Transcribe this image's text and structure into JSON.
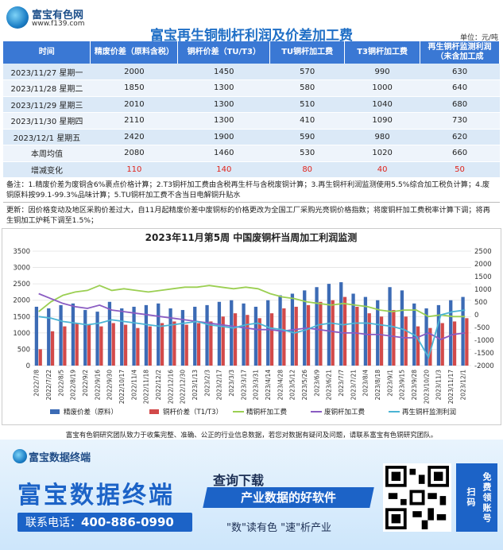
{
  "header": {
    "logo_name": "富宝有色网",
    "logo_url": "www.f139.com",
    "title": "富宝再生铜制杆利润及价差加工费",
    "unit": "单位：元/吨"
  },
  "table": {
    "columns": [
      "时间",
      "精废价差（原料含税）",
      "铜杆价差（TU/T3）",
      "TU铜杆加工费",
      "T3铜杆加工费",
      "再生铜杆监测利润（未含加工成"
    ],
    "rows": [
      [
        "2023/11/27 星期一",
        "2000",
        "1450",
        "570",
        "990",
        "630"
      ],
      [
        "2023/11/28 星期二",
        "1850",
        "1300",
        "580",
        "1000",
        "640"
      ],
      [
        "2023/11/29 星期三",
        "2010",
        "1300",
        "510",
        "1040",
        "680"
      ],
      [
        "2023/11/30 星期四",
        "2110",
        "1300",
        "410",
        "1090",
        "730"
      ],
      [
        "2023/12/1  星期五",
        "2420",
        "1900",
        "590",
        "980",
        "620"
      ],
      [
        "本周均值",
        "2080",
        "1460",
        "530",
        "1020",
        "660"
      ]
    ],
    "change_label": "增减变化",
    "change_values": [
      "110",
      "140",
      "80",
      "40",
      "50"
    ]
  },
  "notes": {
    "note1": "备注：1.精废价差为废铜含6%裹点价格计算；2.T3铜杆加工费由含税再生杆与含税废铜计算；3.再生铜杆利润监测使用5.5%综合加工税负计算；4.废铜原料按99.1-99.3%品味计算；5.TU铜杆加工费不含当日电解铜升贴水",
    "note2": "更新：因价格变动及地区采购价差过大，自11月起精废价差中废铜标的价格更改为全国工厂采购光亮铜价格指数；将废铜杆加工费税率计算下调；将再生铜加工炉耗下调至1.5%；"
  },
  "chart_data": {
    "type": "bar",
    "title": "2023年11月第5周  中国废铜杆当周加工利润监测",
    "y_left": [
      0,
      3500
    ],
    "y_right": [
      -2000,
      2500
    ],
    "y_left_ticks": [
      "0",
      "500",
      "1000",
      "1500",
      "2000",
      "2500",
      "3000",
      "3500"
    ],
    "y_right_ticks": [
      "-2000",
      "-1500",
      "-1000",
      "-500",
      "0",
      "500",
      "1000",
      "1500",
      "2000",
      "2500"
    ],
    "x_ticks": [
      "2022/7/8",
      "2022/7/22",
      "2022/8/5",
      "2022/8/19",
      "2022/9/2",
      "2022/9/16",
      "2022/9/30",
      "2022/10/17",
      "2022/11/4",
      "2022/11/18",
      "2022/12/2",
      "2022/12/16",
      "2022/12/30",
      "2023/1/13",
      "2023/2/3",
      "2023/2/17",
      "2023/3/3",
      "2023/3/17",
      "2023/3/31",
      "2023/4/14",
      "2023/4/28",
      "2023/5/12",
      "2023/5/26",
      "2023/6/9",
      "2023/6/21",
      "2023/7/7",
      "2023/7/21",
      "2023/8/4",
      "2023/8/18",
      "2023/9/1",
      "2023/9/15",
      "2023/9/28",
      "2023/10/20",
      "2023/11/3",
      "2023/11/17",
      "2023/12/1"
    ],
    "legend": [
      "精废价差（原料）",
      "铜杆价差（T1/T3）",
      "精铜杆加工费",
      "废铜杆加工费",
      "再生铜杆监测利润"
    ],
    "colors": [
      "#3c6bb5",
      "#d24a4a",
      "#9bcf52",
      "#8a5cc2",
      "#4bb4d4"
    ],
    "bars_a": [
      1800,
      1750,
      1850,
      1900,
      1700,
      1650,
      1950,
      1750,
      1800,
      1850,
      1900,
      1750,
      1700,
      1800,
      1850,
      1950,
      2000,
      1900,
      1800,
      2000,
      2150,
      2200,
      2300,
      2400,
      2500,
      2550,
      2200,
      2100,
      2000,
      2400,
      2300,
      1900,
      1750,
      1850,
      2000,
      2100
    ],
    "bars_b": [
      500,
      1050,
      1200,
      1300,
      1250,
      1200,
      1300,
      1250,
      1150,
      1200,
      1300,
      1350,
      1250,
      1300,
      1350,
      1500,
      1600,
      1550,
      1450,
      1600,
      1750,
      1800,
      1850,
      1950,
      2000,
      2100,
      1800,
      1600,
      1500,
      1700,
      1500,
      1200,
      1150,
      1300,
      1350,
      1450
    ],
    "line_c": [
      1650,
      1950,
      2150,
      2250,
      2300,
      2450,
      2300,
      2350,
      2300,
      2250,
      2300,
      2350,
      2400,
      2400,
      2450,
      2400,
      2350,
      2400,
      2350,
      2200,
      2100,
      2050,
      1950,
      1900,
      1850,
      1900,
      1850,
      1800,
      1700,
      1650,
      1700,
      1700,
      1500,
      1550,
      1500,
      1500
    ],
    "line_d": [
      2200,
      2050,
      1900,
      1800,
      1750,
      1850,
      1700,
      1650,
      1600,
      1550,
      1500,
      1450,
      1400,
      1350,
      1300,
      1250,
      1200,
      1150,
      1100,
      1100,
      1050,
      1100,
      1150,
      1100,
      1050,
      1000,
      1000,
      950,
      950,
      900,
      850,
      850,
      1000,
      800,
      950,
      1000
    ],
    "line_e": [
      1500,
      1450,
      1350,
      1300,
      1250,
      1300,
      1400,
      1350,
      1300,
      1250,
      1200,
      1250,
      1300,
      1350,
      1250,
      1200,
      1150,
      1250,
      1300,
      1150,
      1100,
      1000,
      1100,
      1250,
      1300,
      1250,
      1300,
      1300,
      1250,
      1200,
      1100,
      900,
      250,
      1550,
      1650,
      1700
    ]
  },
  "footer": {
    "text": "富宝有色铜研究团队致力于收集完整、准确、公正的行业信息数据，若您对数据有疑问及问题，请联系富宝有色铜研究团队。"
  },
  "ad": {
    "logo": "富宝数据终端",
    "headline": "富宝数据终端",
    "phone_label": "联系电话：",
    "phone": "400-886-0990",
    "query": "查询下载",
    "band": "产业数据的好软件",
    "tagline": "\"数\"读有色  \"速\"析产业",
    "side": "免费领账号 扫码"
  }
}
